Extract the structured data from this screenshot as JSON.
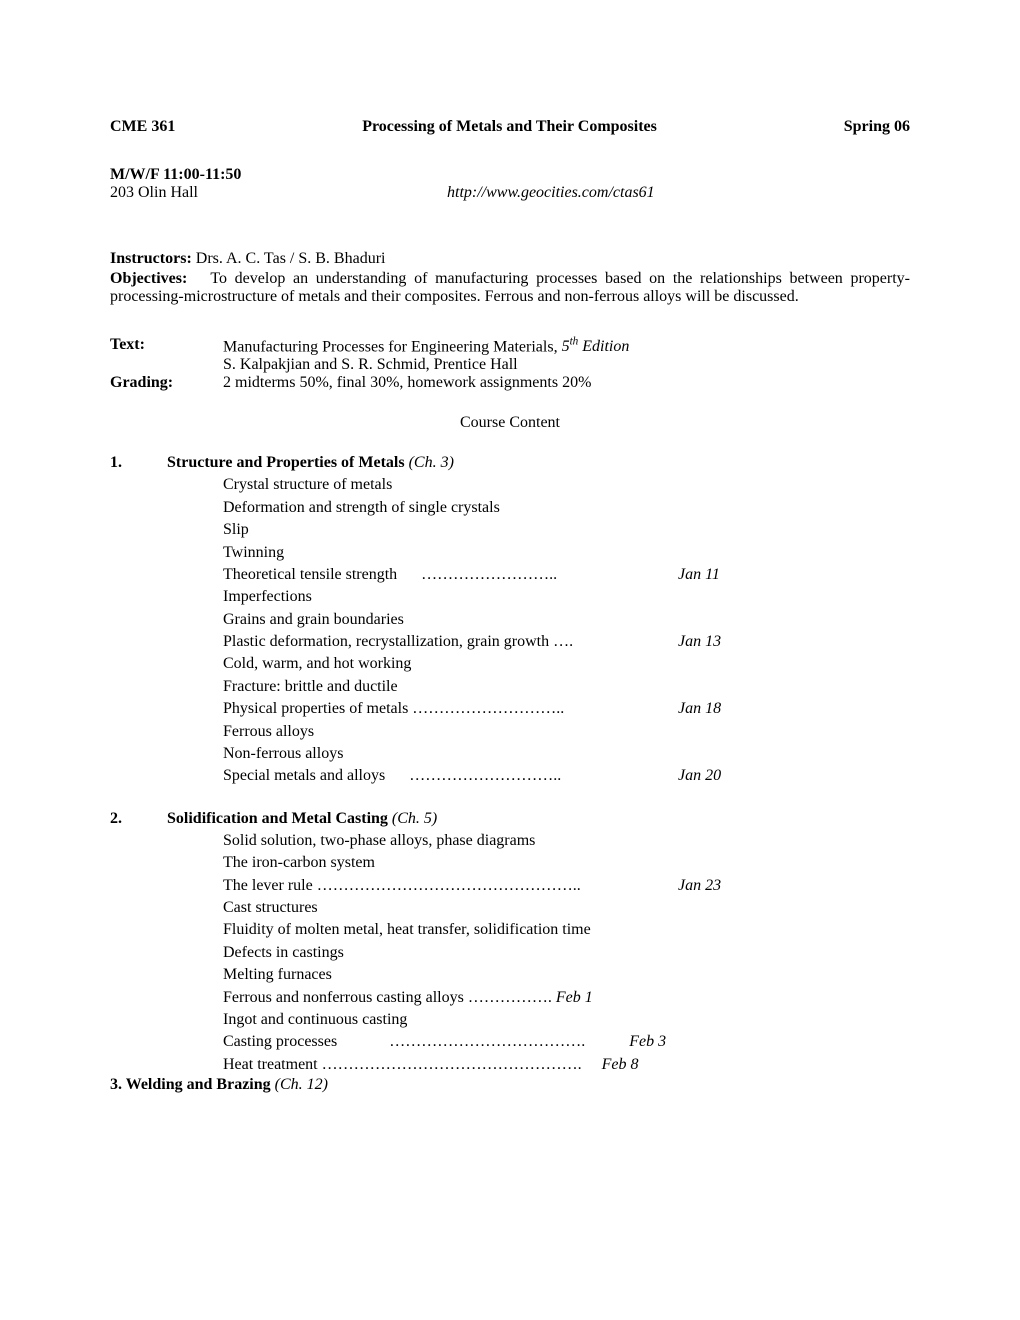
{
  "header": {
    "course_code": "CME 361",
    "course_title": "Processing of Metals and Their Composites",
    "term": "Spring 06"
  },
  "schedule": "M/W/F  11:00-11:50",
  "location": "203 Olin Hall",
  "url": "http://www.geocities.com/ctas61",
  "instructors_label": "Instructors:",
  "instructors": " Drs. A. C. Tas / S. B. Bhaduri",
  "objectives_label": "Objectives:",
  "objectives_text": "To develop an understanding of manufacturing processes based on the relationships between property-processing-microstructure of metals and their composites. Ferrous and non-ferrous alloys will be discussed.",
  "text_label": "Text:",
  "text_line1a": "Manufacturing Processes for Engineering Materials, ",
  "text_line1b_pre": "5",
  "text_line1b_sup": "th",
  "text_line1b_post": " Edition",
  "text_line2": "S. Kalpakjian and S. R. Schmid, Prentice Hall",
  "grading_label": "Grading:",
  "grading_text": "2 midterms 50%, final 30%, homework assignments 20%",
  "course_content_heading": "Course Content",
  "sec1": {
    "num": "1.",
    "title": "Structure and Properties of Metals ",
    "ch": "(Ch. 3)",
    "t1": "Crystal structure of metals",
    "t2": "Deformation and strength of single crystals",
    "t3": "Slip",
    "t4": "Twinning",
    "t5": "Theoretical tensile strength",
    "t5_dots": "……………………..",
    "t5_date": "Jan 11",
    "t6": "Imperfections",
    "t7": "Grains and grain boundaries",
    "t8": "Plastic deformation, recrystallization, grain growth ….",
    "t8_date": "Jan 13",
    "t9": "Cold, warm, and hot working",
    "t10": "Fracture: brittle and ductile",
    "t11": "Physical properties of metals  ………………………..",
    "t11_date": "Jan 18",
    "t12": "Ferrous alloys",
    "t13": "Non-ferrous alloys",
    "t14": "Special metals and alloys",
    "t14_dots": "………………………..",
    "t14_date": "Jan 20"
  },
  "sec2": {
    "num": "2.",
    "title": "Solidification and Metal Casting ",
    "ch": "(Ch. 5)",
    "t1": "Solid solution, two-phase alloys, phase diagrams",
    "t2": "The iron-carbon system",
    "t3": "The lever rule  …………………………………………..",
    "t3_date": "Jan 23",
    "t4": "Cast structures",
    "t5": "Fluidity of molten metal, heat transfer, solidification time",
    "t6": "Defects in castings",
    "t7": "Melting furnaces",
    "t8": "Ferrous and nonferrous casting alloys …………….",
    "t8_date": " Feb 1",
    "t9": "Ingot and continuous casting",
    "t10": "Casting processes",
    "t10_dots": "……………………………….",
    "t10_date": "Feb 3",
    "t11a": "Heat treatment ",
    "t11_dots": "………………………………………….",
    "t11_date": "Feb 8"
  },
  "sec3": {
    "title": "3. Welding and Brazing ",
    "ch": "(Ch. 12)"
  }
}
